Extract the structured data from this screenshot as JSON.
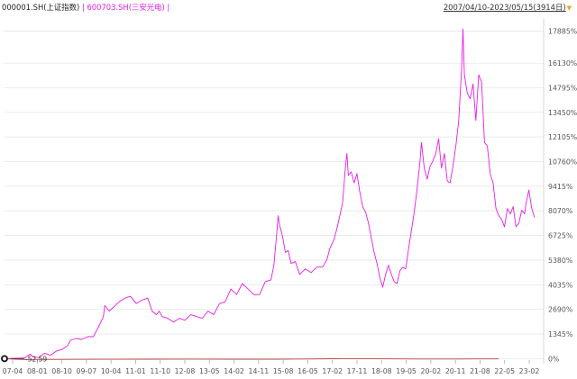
{
  "legend": {
    "series1": "000001.SH(上证指数)",
    "separator": "|",
    "series2": "600703.SH(三安光电)",
    "separator_end": "|"
  },
  "date_range": {
    "text": "2007/04/10-2023/05/15(3914日)",
    "icon": "dropdown-triangle-icon"
  },
  "colors": {
    "index": "#b5483c",
    "stock": "#e81ce8",
    "grid": "#e6e6e6"
  },
  "chart_data": {
    "type": "line",
    "x_tick_labels": [
      "07-04",
      "08-01",
      "08-10",
      "09-07",
      "10-04",
      "11-01",
      "11-10",
      "12-08",
      "13-05",
      "14-02",
      "14-11",
      "15-08",
      "16-05",
      "17-02",
      "17-11",
      "18-08",
      "19-05",
      "20-02",
      "20-11",
      "21-08",
      "22-05",
      "23-02"
    ],
    "y_tick_labels": [
      "17885%",
      "16130%",
      "14795%",
      "13450%",
      "12105%",
      "10760%",
      "9415%",
      "8070%",
      "6725%",
      "5380%",
      "4035%",
      "2690%",
      "1345%",
      "0%"
    ],
    "ylim": [
      -80,
      18600
    ],
    "ytick_values": [
      17885,
      16130,
      14795,
      13450,
      12105,
      10760,
      9415,
      8070,
      6725,
      5380,
      4035,
      2690,
      1345,
      0
    ],
    "start_label": "-52.59",
    "series": [
      {
        "name": "000001.SH(上证指数)",
        "values": [
          [
            0,
            0
          ],
          [
            8,
            -30
          ],
          [
            16,
            -52
          ],
          [
            28,
            -45
          ],
          [
            44,
            -40
          ],
          [
            70,
            -35
          ],
          [
            100,
            -30
          ],
          [
            130,
            -25
          ],
          [
            160,
            -30
          ],
          [
            190,
            -32
          ],
          [
            210,
            -20
          ],
          [
            230,
            -5
          ],
          [
            245,
            -10
          ],
          [
            260,
            -12
          ],
          [
            275,
            -18
          ],
          [
            290,
            -20
          ],
          [
            310,
            -22
          ],
          [
            330,
            -15
          ],
          [
            345,
            -18
          ]
        ]
      },
      {
        "name": "600703.SH(三安光电)",
        "values": [
          [
            0,
            0
          ],
          [
            8,
            20
          ],
          [
            14,
            40
          ],
          [
            18,
            250
          ],
          [
            20,
            80
          ],
          [
            24,
            60
          ],
          [
            28,
            300
          ],
          [
            32,
            180
          ],
          [
            36,
            400
          ],
          [
            40,
            500
          ],
          [
            44,
            700
          ],
          [
            46,
            1000
          ],
          [
            50,
            1100
          ],
          [
            54,
            1050
          ],
          [
            58,
            1200
          ],
          [
            62,
            1200
          ],
          [
            64,
            1500
          ],
          [
            66,
            1800
          ],
          [
            69,
            2300
          ],
          [
            70,
            2900
          ],
          [
            73,
            2600
          ],
          [
            76,
            2800
          ],
          [
            80,
            3100
          ],
          [
            84,
            3300
          ],
          [
            88,
            3400
          ],
          [
            92,
            3000
          ],
          [
            96,
            3200
          ],
          [
            100,
            3300
          ],
          [
            103,
            2600
          ],
          [
            106,
            2400
          ],
          [
            108,
            2600
          ],
          [
            110,
            2300
          ],
          [
            114,
            2200
          ],
          [
            118,
            2000
          ],
          [
            122,
            2200
          ],
          [
            126,
            2100
          ],
          [
            130,
            2400
          ],
          [
            134,
            2300
          ],
          [
            138,
            2200
          ],
          [
            142,
            2600
          ],
          [
            146,
            2400
          ],
          [
            150,
            3000
          ],
          [
            154,
            3100
          ],
          [
            158,
            3800
          ],
          [
            162,
            3500
          ],
          [
            166,
            4100
          ],
          [
            170,
            3800
          ],
          [
            174,
            3500
          ],
          [
            178,
            3500
          ],
          [
            182,
            4200
          ],
          [
            186,
            4300
          ],
          [
            188,
            5100
          ],
          [
            190,
            6800
          ],
          [
            191,
            7800
          ],
          [
            192,
            7300
          ],
          [
            194,
            6700
          ],
          [
            196,
            5800
          ],
          [
            198,
            5900
          ],
          [
            200,
            5200
          ],
          [
            203,
            5300
          ],
          [
            206,
            4600
          ],
          [
            210,
            4900
          ],
          [
            214,
            4700
          ],
          [
            218,
            5000
          ],
          [
            222,
            5000
          ],
          [
            225,
            5400
          ],
          [
            227,
            6000
          ],
          [
            230,
            6500
          ],
          [
            232,
            7100
          ],
          [
            234,
            7800
          ],
          [
            236,
            8500
          ],
          [
            238,
            10500
          ],
          [
            239,
            11200
          ],
          [
            240,
            10000
          ],
          [
            242,
            10200
          ],
          [
            244,
            9600
          ],
          [
            246,
            10100
          ],
          [
            248,
            9100
          ],
          [
            250,
            8300
          ],
          [
            252,
            8000
          ],
          [
            254,
            7400
          ],
          [
            256,
            6600
          ],
          [
            258,
            5800
          ],
          [
            260,
            5200
          ],
          [
            262,
            4400
          ],
          [
            264,
            3900
          ],
          [
            266,
            4600
          ],
          [
            268,
            5100
          ],
          [
            270,
            4600
          ],
          [
            272,
            4200
          ],
          [
            274,
            4100
          ],
          [
            276,
            4800
          ],
          [
            278,
            5000
          ],
          [
            280,
            4900
          ],
          [
            282,
            6000
          ],
          [
            284,
            7000
          ],
          [
            286,
            8000
          ],
          [
            288,
            9300
          ],
          [
            290,
            10800
          ],
          [
            291,
            11800
          ],
          [
            293,
            10400
          ],
          [
            295,
            9800
          ],
          [
            297,
            10500
          ],
          [
            299,
            10800
          ],
          [
            301,
            11200
          ],
          [
            303,
            12000
          ],
          [
            305,
            10400
          ],
          [
            307,
            11200
          ],
          [
            309,
            9700
          ],
          [
            311,
            9600
          ],
          [
            313,
            10500
          ],
          [
            315,
            11600
          ],
          [
            317,
            13000
          ],
          [
            319,
            15800
          ],
          [
            320,
            18000
          ],
          [
            321,
            15500
          ],
          [
            323,
            14500
          ],
          [
            325,
            14200
          ],
          [
            327,
            15000
          ],
          [
            329,
            13000
          ],
          [
            331,
            15500
          ],
          [
            333,
            15100
          ],
          [
            335,
            11800
          ],
          [
            337,
            11600
          ],
          [
            339,
            10100
          ],
          [
            341,
            9600
          ],
          [
            343,
            8200
          ],
          [
            345,
            7800
          ],
          [
            347,
            7600
          ],
          [
            349,
            7200
          ],
          [
            351,
            8200
          ],
          [
            353,
            7900
          ],
          [
            355,
            8300
          ],
          [
            357,
            7200
          ],
          [
            359,
            7400
          ],
          [
            361,
            8100
          ],
          [
            363,
            7900
          ],
          [
            364,
            8500
          ],
          [
            366,
            9200
          ],
          [
            368,
            8200
          ],
          [
            370,
            7700
          ]
        ]
      }
    ]
  }
}
